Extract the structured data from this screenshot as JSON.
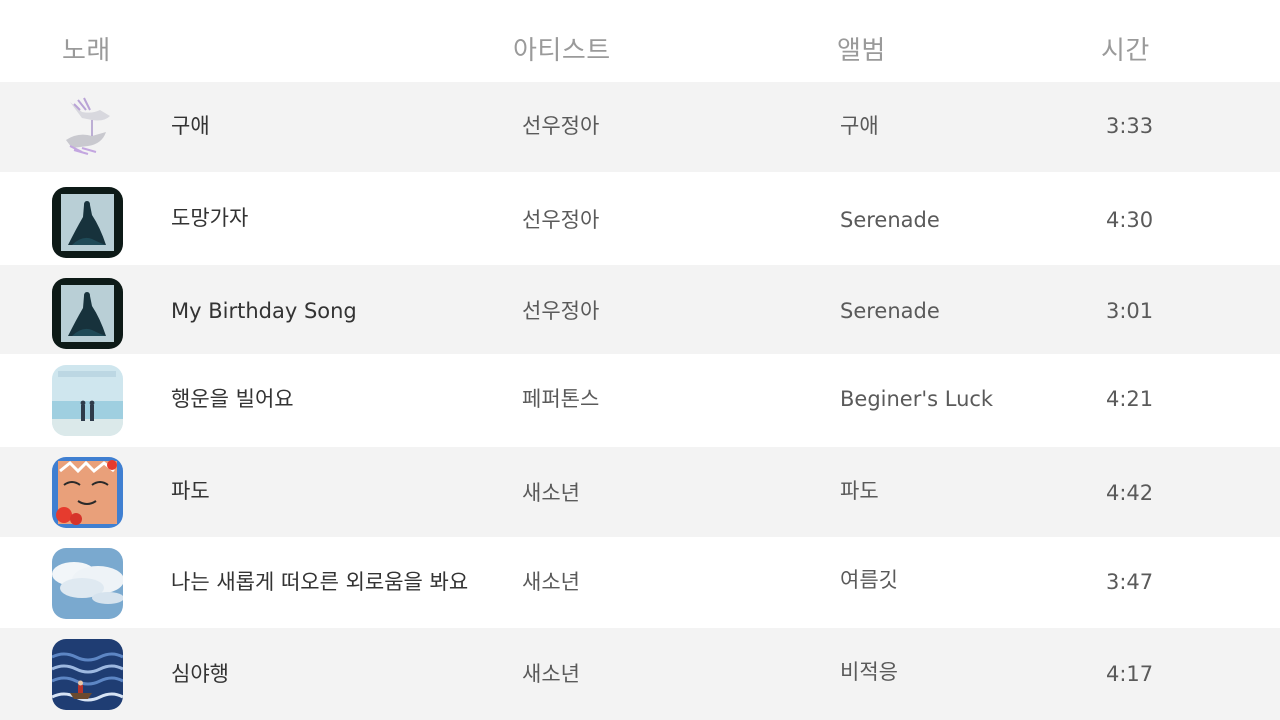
{
  "header": {
    "song": "노래",
    "artist": "아티스트",
    "album": "앨범",
    "time": "시간"
  },
  "songs": [
    {
      "title": "구애",
      "artist": "선우정아",
      "album": "구애",
      "time": "3:33",
      "cover_icon": "hands-cover"
    },
    {
      "title": "도망가자",
      "artist": "선우정아",
      "album": "Serenade",
      "time": "4:30",
      "cover_icon": "cloaked-figure-cover"
    },
    {
      "title": "My Birthday Song",
      "artist": "선우정아",
      "album": "Serenade",
      "time": "3:01",
      "cover_icon": "cloaked-figure-cover"
    },
    {
      "title": "행운을 빌어요",
      "artist": "페퍼톤스",
      "album": "Beginer's Luck",
      "time": "4:21",
      "cover_icon": "beach-duo-cover"
    },
    {
      "title": "파도",
      "artist": "새소년",
      "album": "파도",
      "time": "4:42",
      "cover_icon": "illustrated-face-cover"
    },
    {
      "title": "나는 새롭게 떠오른 외로움을 봐요",
      "artist": "새소년",
      "album": "여름깃",
      "time": "3:47",
      "cover_icon": "cloud-sky-cover"
    },
    {
      "title": "심야행",
      "artist": "새소년",
      "album": "비적응",
      "time": "4:17",
      "cover_icon": "ocean-boat-cover"
    }
  ],
  "colors": {
    "header_text": "#9a9a9a",
    "title_text": "#333333",
    "secondary_text": "#5a5a5a",
    "alt_row_bg": "#f3f3f3"
  }
}
